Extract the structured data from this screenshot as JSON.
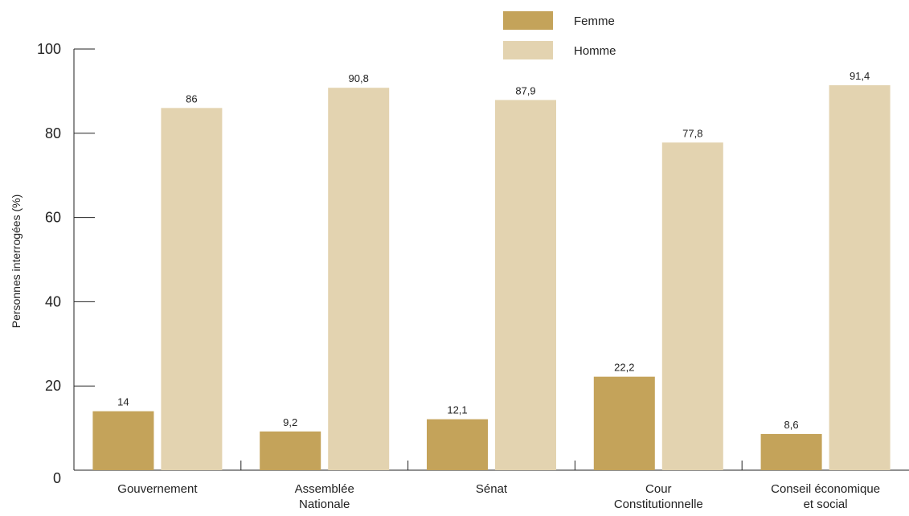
{
  "chart_data": {
    "type": "bar",
    "title": "",
    "ylabel": "Personnes interrogées (%)",
    "xlabel": "",
    "ylim": [
      0,
      100
    ],
    "yticks": [
      0,
      20,
      40,
      60,
      80,
      100
    ],
    "legend_position": "top-right",
    "grid": false,
    "categories": [
      [
        "Gouvernement"
      ],
      [
        "Assemblée",
        "Nationale"
      ],
      [
        "Sénat"
      ],
      [
        "Cour",
        "Constitutionnelle"
      ],
      [
        "Conseil économique",
        "et social"
      ]
    ],
    "series": [
      {
        "name": "Femme",
        "color": "#c4a35a",
        "values": [
          14,
          9.2,
          12.1,
          22.2,
          8.6
        ],
        "labels": [
          "14",
          "9,2",
          "12,1",
          "22,2",
          "8,6"
        ]
      },
      {
        "name": "Homme",
        "color": "#e3d3b0",
        "values": [
          86,
          90.8,
          87.9,
          77.8,
          91.4
        ],
        "labels": [
          "86",
          "90,8",
          "87,9",
          "77,8",
          "91,4"
        ]
      }
    ]
  }
}
